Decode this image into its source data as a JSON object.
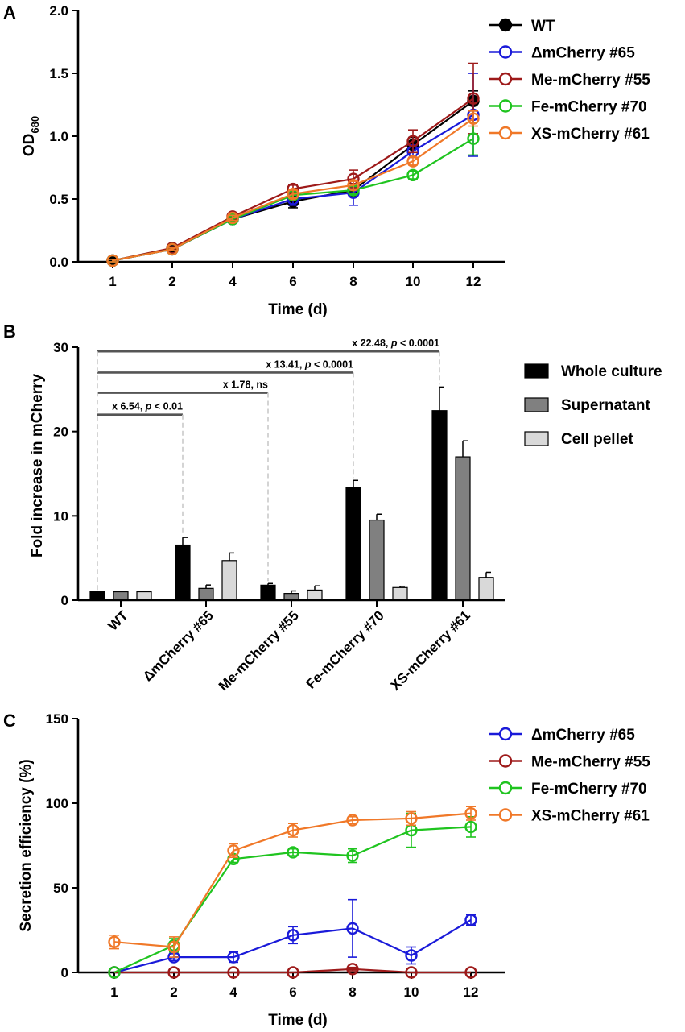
{
  "chart_data": [
    {
      "panel": "A",
      "type": "line",
      "xlabel": "Time (d)",
      "ylabel": "OD",
      "ylabel_sub": "680",
      "categories": [
        "1",
        "2",
        "4",
        "6",
        "8",
        "10",
        "12"
      ],
      "ylim": [
        0,
        2.0
      ],
      "yticks": [
        "0.0",
        "0.5",
        "1.0",
        "1.5",
        "2.0"
      ],
      "series": [
        {
          "name": "WT",
          "color": "#000000",
          "filled": true,
          "values": [
            0.01,
            0.1,
            0.34,
            0.48,
            0.57,
            0.93,
            1.28
          ],
          "errors": [
            0.01,
            0.01,
            0.02,
            0.05,
            0.05,
            0.06,
            0.08
          ]
        },
        {
          "name": "ΔmCherry #65",
          "color": "#1a1ad9",
          "filled": false,
          "values": [
            0.01,
            0.1,
            0.34,
            0.5,
            0.55,
            0.88,
            1.17
          ],
          "errors": [
            0.01,
            0.01,
            0.02,
            0.05,
            0.1,
            0.05,
            0.33
          ]
        },
        {
          "name": "Me-mCherry #55",
          "color": "#9e1a1a",
          "filled": false,
          "values": [
            0.01,
            0.11,
            0.36,
            0.58,
            0.66,
            0.96,
            1.3
          ],
          "errors": [
            0.01,
            0.01,
            0.02,
            0.03,
            0.07,
            0.09,
            0.28
          ]
        },
        {
          "name": "Fe-mCherry #70",
          "color": "#1fc41f",
          "filled": false,
          "values": [
            0.01,
            0.1,
            0.34,
            0.53,
            0.57,
            0.69,
            0.98
          ],
          "errors": [
            0.01,
            0.01,
            0.02,
            0.03,
            0.03,
            0.03,
            0.13
          ]
        },
        {
          "name": "XS-mCherry #61",
          "color": "#f07828",
          "filled": false,
          "values": [
            0.01,
            0.1,
            0.35,
            0.54,
            0.61,
            0.8,
            1.14
          ],
          "errors": [
            0.01,
            0.01,
            0.02,
            0.03,
            0.03,
            0.03,
            0.06
          ]
        }
      ]
    },
    {
      "panel": "B",
      "type": "bar",
      "xlabel": "",
      "ylabel": "Fold increase in mCherry",
      "ylim": [
        0,
        30
      ],
      "yticks": [
        "0",
        "10",
        "20",
        "30"
      ],
      "categories": [
        "WT",
        "ΔmCherry #65",
        "Me-mCherry #55",
        "Fe-mCherry #70",
        "XS-mCherry #61"
      ],
      "series": [
        {
          "name": "Whole culture",
          "color": "#000000",
          "values": [
            1.0,
            6.54,
            1.78,
            13.41,
            22.48
          ],
          "errors": [
            0,
            0.9,
            0.2,
            0.8,
            2.8
          ]
        },
        {
          "name": "Supernatant",
          "color": "#808080",
          "values": [
            1.0,
            1.4,
            0.8,
            9.5,
            17.0
          ],
          "errors": [
            0,
            0.4,
            0.3,
            0.7,
            1.9
          ]
        },
        {
          "name": "Cell pellet",
          "color": "#d9d9d9",
          "values": [
            1.0,
            4.7,
            1.2,
            1.5,
            2.7
          ],
          "errors": [
            0,
            0.9,
            0.5,
            0.15,
            0.6
          ]
        }
      ],
      "annotations": [
        {
          "target": 1,
          "level": 22.0,
          "prefix": "x 6.54, ",
          "p": "p",
          "suffix": " < 0.01"
        },
        {
          "target": 2,
          "level": 24.6,
          "prefix": "x 1.78, ns",
          "p": "",
          "suffix": ""
        },
        {
          "target": 3,
          "level": 27.0,
          "prefix": "x 13.41, ",
          "p": "p",
          "suffix": " < 0.0001"
        },
        {
          "target": 4,
          "level": 29.5,
          "prefix": "x 22.48, ",
          "p": "p",
          "suffix": " < 0.0001"
        }
      ]
    },
    {
      "panel": "C",
      "type": "line",
      "xlabel": "Time (d)",
      "ylabel": "Secretion efficiency (%)",
      "categories": [
        "1",
        "2",
        "4",
        "6",
        "8",
        "10",
        "12"
      ],
      "ylim": [
        0,
        150
      ],
      "yticks": [
        "0",
        "50",
        "100",
        "150"
      ],
      "series": [
        {
          "name": "ΔmCherry #65",
          "color": "#1a1ad9",
          "filled": false,
          "values": [
            0,
            9,
            9,
            22,
            26,
            10,
            31
          ],
          "errors": [
            0,
            2,
            3,
            5,
            17,
            5,
            3
          ]
        },
        {
          "name": "Me-mCherry #55",
          "color": "#9e1a1a",
          "filled": false,
          "values": [
            0,
            0,
            0,
            0,
            2,
            0,
            0
          ],
          "errors": [
            0,
            0,
            0,
            0,
            1,
            0,
            0
          ]
        },
        {
          "name": "Fe-mCherry #70",
          "color": "#1fc41f",
          "filled": false,
          "values": [
            0,
            16,
            67,
            71,
            69,
            84,
            86
          ],
          "errors": [
            0,
            4,
            2,
            2,
            4,
            10,
            6
          ]
        },
        {
          "name": "XS-mCherry #61",
          "color": "#f07828",
          "filled": false,
          "values": [
            18,
            15,
            72,
            84,
            90,
            91,
            94
          ],
          "errors": [
            4,
            6,
            4,
            4,
            2,
            4,
            4
          ]
        }
      ]
    }
  ]
}
